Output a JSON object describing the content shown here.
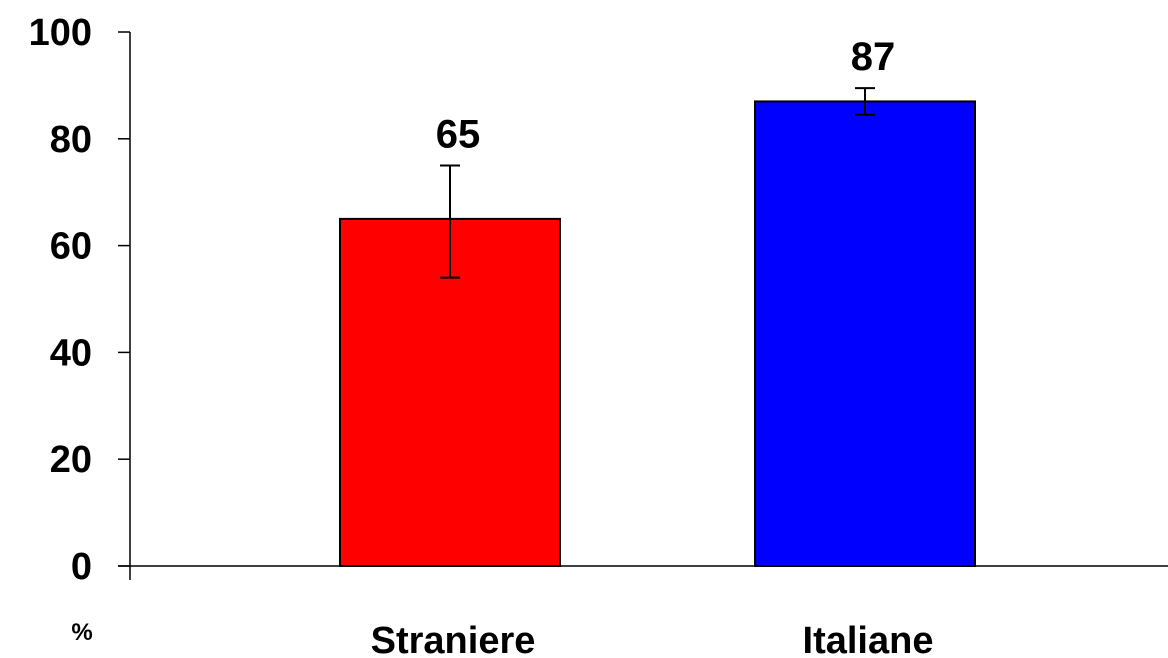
{
  "chart_data": {
    "type": "bar",
    "categories": [
      "Straniere",
      "Italiane"
    ],
    "values": [
      65,
      87
    ],
    "error_bars": [
      {
        "low": 54,
        "high": 75
      },
      {
        "low": 84.5,
        "high": 89.5
      }
    ],
    "data_labels": [
      "65",
      "87"
    ],
    "colors": [
      "#ff0000",
      "#0000ff"
    ],
    "title": "",
    "xlabel": "",
    "ylabel": "",
    "unit_label": "%",
    "ylim": [
      0,
      100
    ],
    "yticks": [
      0,
      20,
      40,
      60,
      80,
      100
    ],
    "ytick_labels": [
      "0",
      "20",
      "40",
      "60",
      "80",
      "100"
    ],
    "grid": false,
    "legend": "none"
  }
}
